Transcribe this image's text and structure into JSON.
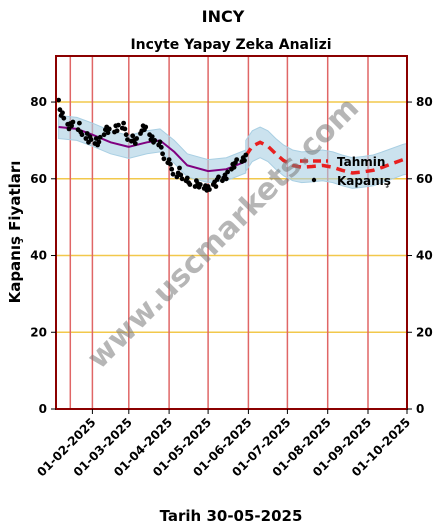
{
  "chart_data": {
    "type": "line",
    "title": "INCY",
    "subtitle": "Incyte Yapay Zeka Analizi",
    "ylabel": "Kapanış Fiyatları",
    "xlabel": "Tarih 30-05-2025",
    "watermark": "www.uscmarkets.com",
    "ylim": [
      0,
      92
    ],
    "xlim": [
      "2025-01-04",
      "2025-10-01"
    ],
    "yticks": [
      0,
      20,
      40,
      60,
      80
    ],
    "xticks": [
      "01-02-2025",
      "01-03-2025",
      "01-04-2025",
      "01-05-2025",
      "01-06-2025",
      "01-07-2025",
      "01-08-2025",
      "01-09-2025",
      "01-10-2025"
    ],
    "grid": true,
    "legend_position": "right",
    "legend": [
      "Tahmin",
      "Kapanış"
    ],
    "colors": {
      "frame": "#8b0000",
      "vgrid": "#e06666",
      "hgrid": "#f2c84b",
      "band": "#a9cfe3",
      "smooth": "#800080",
      "forecast": "#e82020",
      "points": "#000000"
    },
    "closing_series": {
      "name": "Kapanış",
      "points": [
        [
          "2025-01-06",
          80.5
        ],
        [
          "2025-01-07",
          78.0
        ],
        [
          "2025-01-08",
          76.5
        ],
        [
          "2025-01-09",
          77.2
        ],
        [
          "2025-01-10",
          75.8
        ],
        [
          "2025-01-13",
          74.2
        ],
        [
          "2025-01-14",
          73.0
        ],
        [
          "2025-01-15",
          74.4
        ],
        [
          "2025-01-16",
          73.8
        ],
        [
          "2025-01-17",
          74.8
        ],
        [
          "2025-01-21",
          72.8
        ],
        [
          "2025-01-22",
          74.5
        ],
        [
          "2025-01-23",
          72.2
        ],
        [
          "2025-01-24",
          71.5
        ],
        [
          "2025-01-27",
          70.5
        ],
        [
          "2025-01-28",
          71.8
        ],
        [
          "2025-01-29",
          69.5
        ],
        [
          "2025-01-30",
          71.0
        ],
        [
          "2025-01-31",
          70.2
        ],
        [
          "2025-02-03",
          69.2
        ],
        [
          "2025-02-04",
          70.5
        ],
        [
          "2025-02-05",
          68.8
        ],
        [
          "2025-02-06",
          69.6
        ],
        [
          "2025-02-07",
          70.8
        ],
        [
          "2025-02-10",
          71.5
        ],
        [
          "2025-02-11",
          72.8
        ],
        [
          "2025-02-12",
          73.5
        ],
        [
          "2025-02-13",
          72.0
        ],
        [
          "2025-02-14",
          73.0
        ],
        [
          "2025-02-18",
          72.2
        ],
        [
          "2025-02-19",
          73.8
        ],
        [
          "2025-02-20",
          72.5
        ],
        [
          "2025-02-21",
          74.0
        ],
        [
          "2025-02-24",
          73.2
        ],
        [
          "2025-02-25",
          74.5
        ],
        [
          "2025-02-26",
          73.0
        ],
        [
          "2025-02-27",
          71.5
        ],
        [
          "2025-02-28",
          70.2
        ],
        [
          "2025-03-03",
          69.8
        ],
        [
          "2025-03-04",
          71.2
        ],
        [
          "2025-03-05",
          70.0
        ],
        [
          "2025-03-06",
          69.2
        ],
        [
          "2025-03-07",
          70.5
        ],
        [
          "2025-03-10",
          71.8
        ],
        [
          "2025-03-11",
          72.5
        ],
        [
          "2025-03-12",
          73.8
        ],
        [
          "2025-03-13",
          72.8
        ],
        [
          "2025-03-14",
          73.5
        ],
        [
          "2025-03-17",
          71.5
        ],
        [
          "2025-03-18",
          70.2
        ],
        [
          "2025-03-19",
          71.0
        ],
        [
          "2025-03-20",
          69.5
        ],
        [
          "2025-03-21",
          70.0
        ],
        [
          "2025-03-24",
          68.8
        ],
        [
          "2025-03-25",
          69.6
        ],
        [
          "2025-03-26",
          68.2
        ],
        [
          "2025-03-27",
          66.5
        ],
        [
          "2025-03-28",
          65.2
        ],
        [
          "2025-03-31",
          64.2
        ],
        [
          "2025-04-01",
          65.0
        ],
        [
          "2025-04-02",
          63.8
        ],
        [
          "2025-04-03",
          62.5
        ],
        [
          "2025-04-04",
          61.2
        ],
        [
          "2025-04-07",
          60.5
        ],
        [
          "2025-04-08",
          61.5
        ],
        [
          "2025-04-09",
          62.8
        ],
        [
          "2025-04-10",
          61.0
        ],
        [
          "2025-04-11",
          60.0
        ],
        [
          "2025-04-14",
          59.5
        ],
        [
          "2025-04-15",
          60.2
        ],
        [
          "2025-04-16",
          59.0
        ],
        [
          "2025-04-17",
          58.5
        ],
        [
          "2025-04-21",
          58.0
        ],
        [
          "2025-04-22",
          59.5
        ],
        [
          "2025-04-23",
          58.8
        ],
        [
          "2025-04-24",
          57.8
        ],
        [
          "2025-04-25",
          58.5
        ],
        [
          "2025-04-28",
          57.5
        ],
        [
          "2025-04-29",
          58.2
        ],
        [
          "2025-04-30",
          57.0
        ],
        [
          "2025-05-01",
          58.0
        ],
        [
          "2025-05-02",
          57.2
        ],
        [
          "2025-05-05",
          58.5
        ],
        [
          "2025-05-06",
          59.2
        ],
        [
          "2025-05-07",
          58.0
        ],
        [
          "2025-05-08",
          59.8
        ],
        [
          "2025-05-09",
          60.5
        ],
        [
          "2025-05-12",
          59.5
        ],
        [
          "2025-05-13",
          60.2
        ],
        [
          "2025-05-14",
          61.0
        ],
        [
          "2025-05-15",
          60.0
        ],
        [
          "2025-05-16",
          61.8
        ],
        [
          "2025-05-19",
          62.5
        ],
        [
          "2025-05-20",
          63.8
        ],
        [
          "2025-05-21",
          63.0
        ],
        [
          "2025-05-22",
          64.2
        ],
        [
          "2025-05-23",
          65.0
        ],
        [
          "2025-05-27",
          64.5
        ],
        [
          "2025-05-28",
          65.5
        ],
        [
          "2025-05-29",
          64.8
        ],
        [
          "2025-05-30",
          66.2
        ]
      ]
    },
    "smooth_series": {
      "name": "",
      "points": [
        [
          "2025-01-06",
          73.5
        ],
        [
          "2025-01-20",
          73.0
        ],
        [
          "2025-02-01",
          71.5
        ],
        [
          "2025-02-15",
          69.5
        ],
        [
          "2025-03-01",
          68.3
        ],
        [
          "2025-03-15",
          69.5
        ],
        [
          "2025-03-25",
          70.0
        ],
        [
          "2025-04-05",
          67.0
        ],
        [
          "2025-04-15",
          63.5
        ],
        [
          "2025-05-01",
          62.0
        ],
        [
          "2025-05-15",
          62.5
        ],
        [
          "2025-05-30",
          64.5
        ]
      ],
      "band_halfwidth": 3
    },
    "forecast_series": {
      "name": "Tahmin",
      "points": [
        [
          "2025-05-30",
          66.0
        ],
        [
          "2025-06-04",
          68.5
        ],
        [
          "2025-06-10",
          69.5
        ],
        [
          "2025-06-16",
          68.5
        ],
        [
          "2025-06-22",
          66.5
        ],
        [
          "2025-06-28",
          64.8
        ],
        [
          "2025-07-05",
          63.5
        ],
        [
          "2025-07-12",
          63.0
        ],
        [
          "2025-07-20",
          63.2
        ],
        [
          "2025-07-28",
          63.5
        ],
        [
          "2025-08-05",
          63.0
        ],
        [
          "2025-08-12",
          62.2
        ],
        [
          "2025-08-20",
          61.5
        ],
        [
          "2025-08-28",
          61.8
        ],
        [
          "2025-09-05",
          62.2
        ],
        [
          "2025-09-12",
          63.0
        ],
        [
          "2025-09-20",
          64.0
        ],
        [
          "2025-09-28",
          65.0
        ],
        [
          "2025-10-01",
          65.2
        ]
      ],
      "band_halfwidth": 4
    }
  }
}
